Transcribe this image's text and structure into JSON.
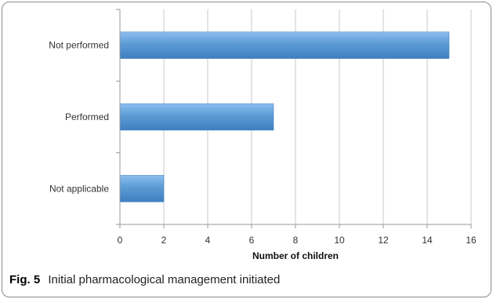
{
  "chart_data": {
    "type": "bar",
    "orientation": "horizontal",
    "categories": [
      "Not performed",
      "Performed",
      "Not applicable"
    ],
    "values": [
      15,
      7,
      2
    ],
    "xlabel": "Number of children",
    "ylabel": "",
    "xlim": [
      0,
      16
    ],
    "xticks": [
      0,
      2,
      4,
      6,
      8,
      10,
      12,
      14,
      16
    ],
    "grid": true,
    "bar_color": "#5b9bd5"
  },
  "caption": {
    "label": "Fig. 5",
    "text": "Initial pharmacological management initiated"
  }
}
